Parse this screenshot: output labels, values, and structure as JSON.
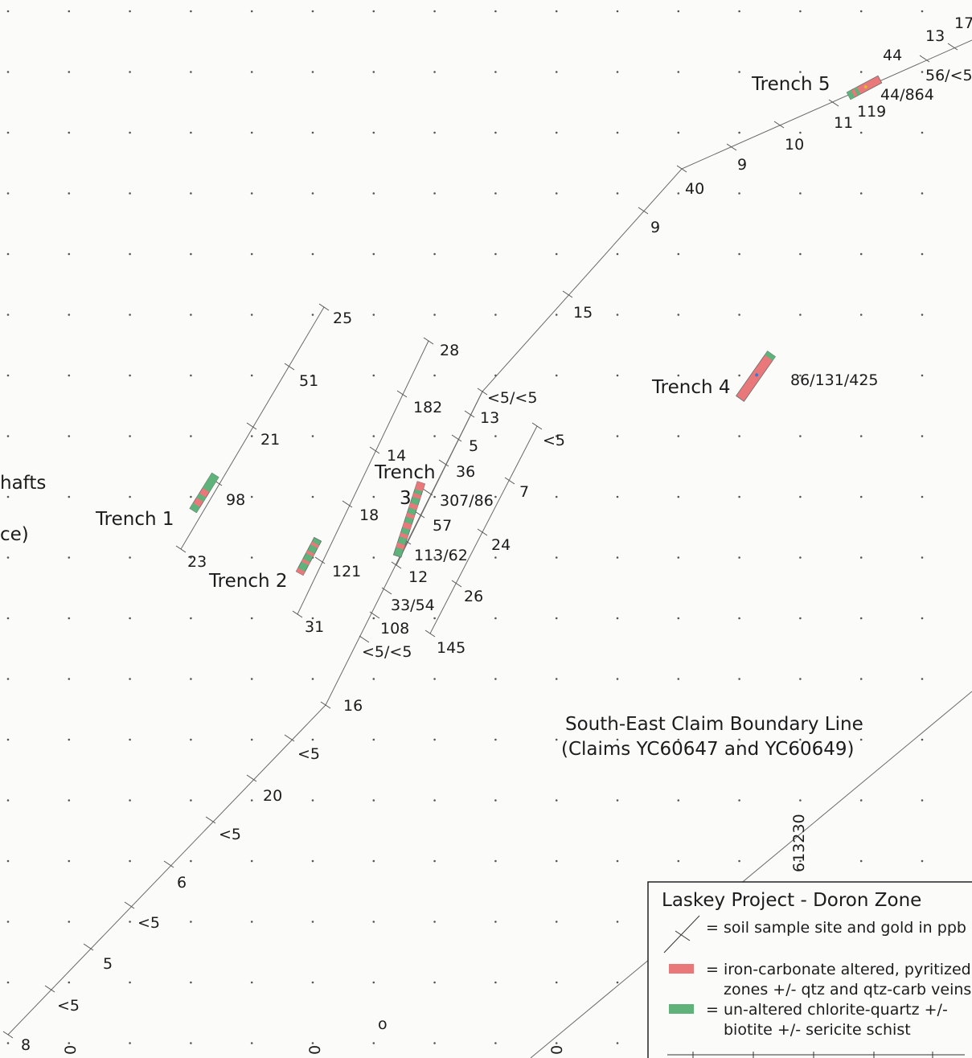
{
  "map": {
    "trench_labels": {
      "t1": "Trench 1",
      "t2": "Trench 2",
      "t3a": "Trench",
      "t3b": "3",
      "t4": "Trench 4",
      "t5": "Trench 5"
    },
    "partial_labels": {
      "shafts": "hafts",
      "ce": "ce)"
    },
    "boundary": {
      "line1": "South-East Claim Boundary Line",
      "line2": "(Claims YC60647 and YC60649)",
      "grid_number": "613230"
    },
    "bottom_marks": [
      "0",
      "0",
      "0",
      "o"
    ],
    "sample_values": {
      "l1a": "25",
      "l1b": "51",
      "l1c": "21",
      "l1d": "98",
      "l1e": "23",
      "l2a": "28",
      "l2b": "182",
      "l2c": "14",
      "l2d": "18",
      "l2e": "121",
      "l2f": "31",
      "l3a": "<5/<5",
      "l3b": "13",
      "l3c": "5",
      "l3d": "36",
      "l3e": "307/86",
      "l3f": "57",
      "l3g": "113/62",
      "l3h": "12",
      "l3i": "33/54",
      "l3j": "108",
      "l3k": "<5/<5",
      "l4a": "<5",
      "l4b": "7",
      "l4c": "24",
      "l4d": "26",
      "l4e": "145",
      "m1": "16",
      "m2": "<5",
      "m3": "20",
      "m4": "<5",
      "m5": "6",
      "m6": "<5",
      "m7": "5",
      "m8": "<5",
      "m9": "8",
      "n1": "15",
      "n2": "9",
      "n3": "40",
      "n4": "9",
      "n5": "10",
      "n6": "11",
      "n7": "119",
      "n8": "44/864",
      "n9": "44",
      "n10": "13",
      "n11": "17",
      "n12": "56/<5",
      "t4v": "86/131/425"
    }
  },
  "legend": {
    "title": "Laskey Project - Doron Zone",
    "soil_text": "= soil sample site and gold  in ppb",
    "red_text_1": "= iron-carbonate altered, pyritized",
    "red_text_2": "zones +/- qtz and qtz-carb veins",
    "green_text_1": "= un-altered chlorite-quartz +/-",
    "green_text_2": "biotite +/- sericite schist"
  },
  "colors": {
    "red_zone": "#e8787a",
    "green_zone": "#5fb37a",
    "line": "#555555",
    "grid_dot": "#555555"
  }
}
